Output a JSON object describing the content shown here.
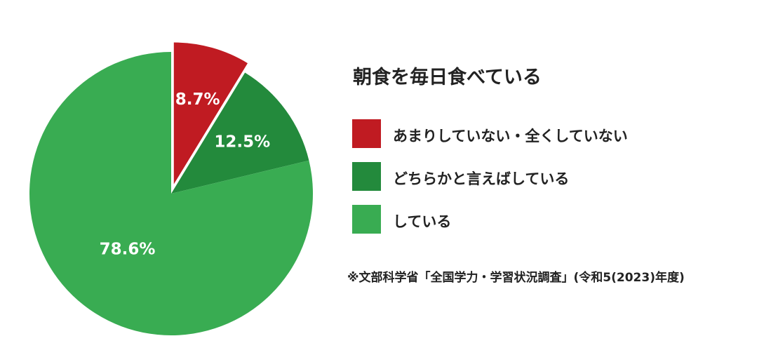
{
  "chart_data": {
    "type": "pie",
    "title": "朝食を毎日食べている",
    "categories": [
      "あまりしていない・全くしていない",
      "どちらかと言えばしている",
      "している"
    ],
    "values": [
      8.7,
      12.5,
      78.6
    ],
    "labels": [
      "8.7%",
      "12.5%",
      "78.6%"
    ],
    "colors": [
      "#C01B22",
      "#238A3C",
      "#39AC52"
    ],
    "exploded": [
      true,
      false,
      false
    ],
    "legend_position": "right",
    "source": "※文部科学省「全国学力・学習状況調査」(令和5(2023)年度)"
  }
}
